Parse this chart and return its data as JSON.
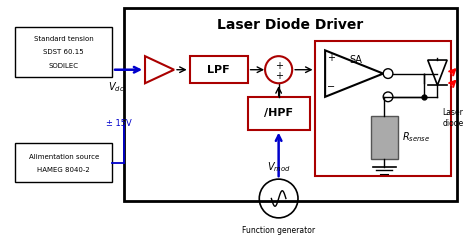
{
  "title": "Laser Diode Driver",
  "standard_tension_text": [
    "Standard tension",
    "SDST 60.15",
    "SODILEC"
  ],
  "alimentation_text": [
    "Alimentation source",
    "HAMEG 8040-2"
  ],
  "plus15v_label": "± 15V",
  "lpf_label": "LPF",
  "hpf_label": "/HPF",
  "rsense_label": "R",
  "rsense_sub": "sense",
  "laser_diode_label": "Laser\ndiode",
  "function_gen_label": "Function generator",
  "red": "#aa0000",
  "blue": "#0000cc"
}
